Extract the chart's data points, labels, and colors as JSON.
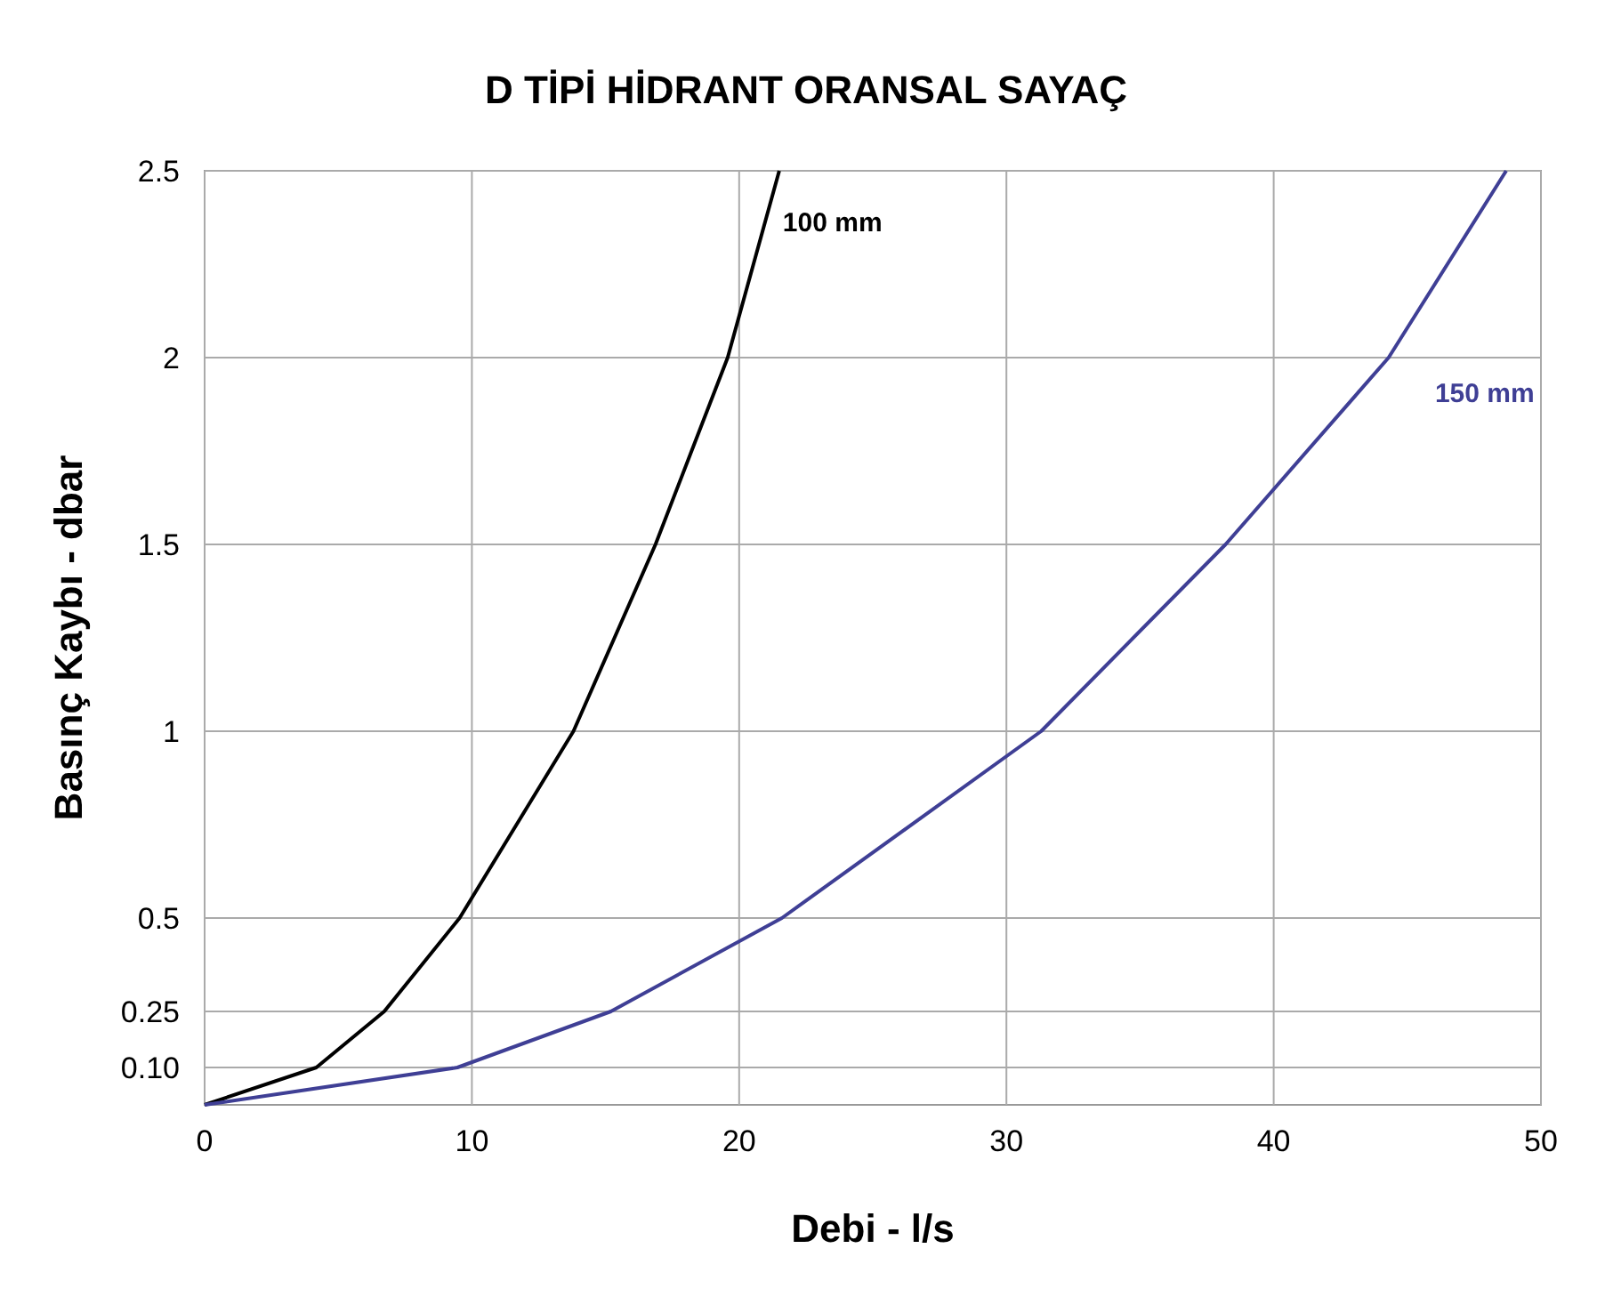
{
  "chart_data": {
    "type": "line",
    "title": "D TİPİ HİDRANT ORANSAL SAYAÇ",
    "xlabel": "Debi - l/s",
    "ylabel": "Basınç Kaybı - dbar",
    "xlim": [
      0,
      50
    ],
    "xticks": [
      0,
      10,
      20,
      30,
      40,
      50
    ],
    "ylim": [
      0,
      2.5
    ],
    "yticks": [
      {
        "value": 0.1,
        "label": "0.10"
      },
      0.25,
      0.5,
      1,
      1.5,
      2,
      2.5
    ],
    "grid": true,
    "marker": "none",
    "line_style": "solid",
    "series": [
      {
        "name": "100 mm",
        "color": "#000000",
        "x": [
          0,
          4.18,
          6.72,
          9.54,
          13.8,
          16.87,
          19.57,
          21.5
        ],
        "values": [
          0,
          0.1,
          0.25,
          0.5,
          1,
          1.5,
          2,
          2.5
        ]
      },
      {
        "name": "150 mm",
        "color": "#3f3f95",
        "x": [
          0,
          9.46,
          15.2,
          21.6,
          31.3,
          38.2,
          44.3,
          48.7
        ],
        "values": [
          0,
          0.1,
          0.25,
          0.5,
          1,
          1.5,
          2,
          2.5
        ]
      }
    ]
  }
}
